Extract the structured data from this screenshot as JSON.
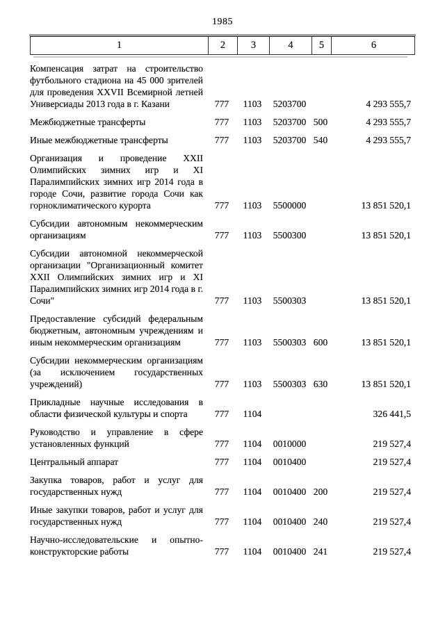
{
  "page": {
    "number": "1985"
  },
  "table": {
    "headers": [
      "1",
      "2",
      "3",
      "4",
      "5",
      "6"
    ],
    "rows": [
      {
        "name": "Компенсация затрат на строительство футбольного стадиона на 45 000 зрителей для проведения XXVII Всемирной летней Универсиады 2013 года в г. Казани",
        "chapter": "777",
        "section": "1103",
        "article": "5203700",
        "expense_type": "",
        "amount": "4 293 555,7"
      },
      {
        "name": "Межбюджетные трансферты",
        "chapter": "777",
        "section": "1103",
        "article": "5203700",
        "expense_type": "500",
        "amount": "4 293 555,7"
      },
      {
        "name": "Иные межбюджетные трансферты",
        "chapter": "777",
        "section": "1103",
        "article": "5203700",
        "expense_type": "540",
        "amount": "4 293 555,7"
      },
      {
        "name": "Организация и проведение XXII Олимпийских зимних игр и XI Паралимпийских зимних игр 2014 года в городе Сочи, развитие города Сочи как горноклиматического курорта",
        "chapter": "777",
        "section": "1103",
        "article": "5500000",
        "expense_type": "",
        "amount": "13 851 520,1"
      },
      {
        "name": "Субсидии автономным некоммерческим организациям",
        "chapter": "777",
        "section": "1103",
        "article": "5500300",
        "expense_type": "",
        "amount": "13 851 520,1"
      },
      {
        "name": "Субсидии автономной некоммерческой организации \"Организационный комитет XXII Олимпийских зимних игр и XI Паралимпийских зимних игр 2014 года в г. Сочи\"",
        "chapter": "777",
        "section": "1103",
        "article": "5500303",
        "expense_type": "",
        "amount": "13 851 520,1"
      },
      {
        "name": "Предоставление субсидий федеральным бюджетным, автономным учреждениям и иным некоммерческим организациям",
        "chapter": "777",
        "section": "1103",
        "article": "5500303",
        "expense_type": "600",
        "amount": "13 851 520,1"
      },
      {
        "name": "Субсидии некоммерческим организациям (за исключением государственных учреждений)",
        "chapter": "777",
        "section": "1103",
        "article": "5500303",
        "expense_type": "630",
        "amount": "13 851 520,1"
      },
      {
        "name": "Прикладные научные исследования в области физической культуры и спорта",
        "chapter": "777",
        "section": "1104",
        "article": "",
        "expense_type": "",
        "amount": "326 441,5"
      },
      {
        "name": "Руководство и управление в сфере установленных функций",
        "chapter": "777",
        "section": "1104",
        "article": "0010000",
        "expense_type": "",
        "amount": "219 527,4"
      },
      {
        "name": "Центральный аппарат",
        "chapter": "777",
        "section": "1104",
        "article": "0010400",
        "expense_type": "",
        "amount": "219 527,4"
      },
      {
        "name": "Закупка товаров, работ и услуг для государственных нужд",
        "chapter": "777",
        "section": "1104",
        "article": "0010400",
        "expense_type": "200",
        "amount": "219 527,4"
      },
      {
        "name": "Иные закупки товаров, работ и услуг для государственных нужд",
        "chapter": "777",
        "section": "1104",
        "article": "0010400",
        "expense_type": "240",
        "amount": "219 527,4"
      },
      {
        "name": "Научно-исследовательские и опытно-конструкторские работы",
        "chapter": "777",
        "section": "1104",
        "article": "0010400",
        "expense_type": "241",
        "amount": "219 527,4"
      }
    ]
  }
}
